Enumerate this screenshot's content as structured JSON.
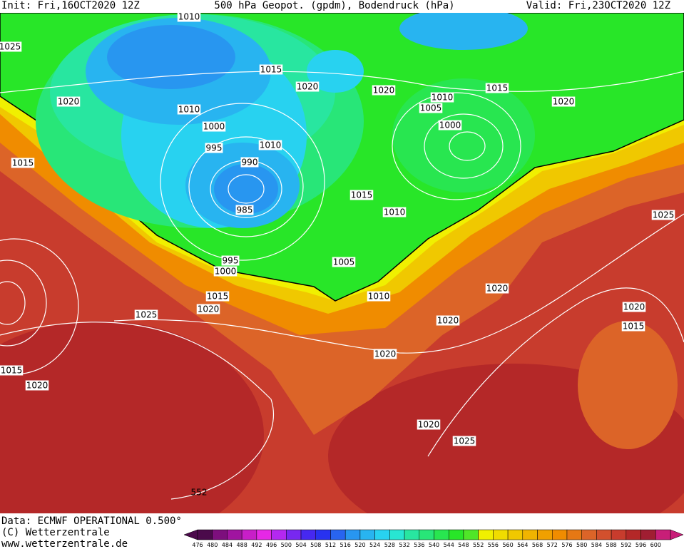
{
  "header": {
    "init": "Init: Fri,16OCT2020 12Z",
    "title": "500 hPa Geopot. (gpdm), Bodendruck (hPa)",
    "valid": "Valid: Fri,23OCT2020 12Z"
  },
  "isobar_labels": [
    "1010",
    "1025",
    "1015",
    "1020",
    "1020",
    "1020",
    "1015",
    "1020",
    "1010",
    "1010",
    "1005",
    "1000",
    "1000",
    "995",
    "1010",
    "990",
    "1015",
    "1010",
    "985",
    "1015",
    "1025",
    "995",
    "1000",
    "1005",
    "1015",
    "1010",
    "1020",
    "1020",
    "1025",
    "1020",
    "1015",
    "1020",
    "1020",
    "1015",
    "1020",
    "1020",
    "1025",
    "552"
  ],
  "footer": {
    "data": "Data: ECMWF OPERATIONAL 0.500°",
    "copyright": "(C) Wetterzentrale",
    "url": "www.wetterzentrale.de"
  },
  "legend": {
    "levels": [
      476,
      480,
      484,
      488,
      492,
      496,
      500,
      504,
      508,
      512,
      516,
      520,
      524,
      528,
      532,
      536,
      540,
      544,
      548,
      552,
      556,
      560,
      564,
      568,
      572,
      576,
      580,
      584,
      588,
      592,
      596,
      600
    ],
    "colors": [
      "#4b0a4b",
      "#7d0f7d",
      "#a014a0",
      "#c81ec8",
      "#e628e6",
      "#b428f0",
      "#7828f0",
      "#4628f0",
      "#2832f0",
      "#2864f0",
      "#2896f0",
      "#28b4f0",
      "#28d2f0",
      "#28e6d2",
      "#28e6a0",
      "#28e678",
      "#28e650",
      "#28e628",
      "#50e628",
      "#f0f000",
      "#f0dc00",
      "#f0c800",
      "#f0b400",
      "#f0a000",
      "#f08c00",
      "#e67814",
      "#dc6428",
      "#d2502d",
      "#c83c2d",
      "#b42828",
      "#a01e32",
      "#c81e78"
    ]
  }
}
